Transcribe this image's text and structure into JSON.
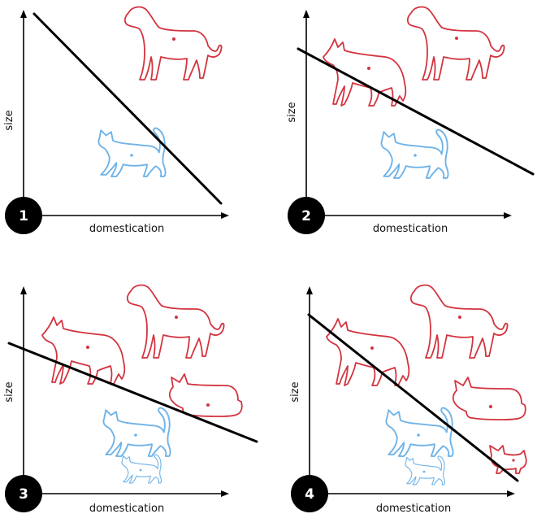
{
  "colors": {
    "dog": "#d3343f",
    "cat": "#6fb3e8",
    "line": "#000000"
  },
  "panels": [
    {
      "number": "1",
      "xlabel": "domestication",
      "ylabel": "size"
    },
    {
      "number": "2",
      "xlabel": "domestication",
      "ylabel": "size"
    },
    {
      "number": "3",
      "xlabel": "domestication",
      "ylabel": "size"
    },
    {
      "number": "4",
      "xlabel": "domestication",
      "ylabel": "size"
    }
  ]
}
